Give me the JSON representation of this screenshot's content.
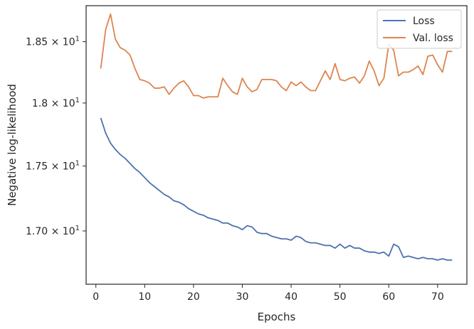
{
  "chart_data": {
    "type": "line",
    "xlabel": "Epochs",
    "ylabel": "Negative log-likelihood",
    "xlim": [
      -2,
      76
    ],
    "ylim": [
      16.6,
      18.8
    ],
    "y_scale": "log",
    "grid": false,
    "legend_position": "top-right",
    "x_ticks": [
      0,
      10,
      20,
      30,
      40,
      50,
      60,
      70
    ],
    "x_tick_labels": [
      "0",
      "10",
      "20",
      "30",
      "40",
      "50",
      "60",
      "70"
    ],
    "y_ticks": [
      {
        "value": 17.0,
        "mantissa": "1.70",
        "exponent": "1"
      },
      {
        "value": 17.5,
        "mantissa": "1.75",
        "exponent": "1"
      },
      {
        "value": 18.0,
        "mantissa": "1.8",
        "exponent": "1"
      },
      {
        "value": 18.5,
        "mantissa": "1.85",
        "exponent": "1"
      }
    ],
    "x": [
      1,
      2,
      3,
      4,
      5,
      6,
      7,
      8,
      9,
      10,
      11,
      12,
      13,
      14,
      15,
      16,
      17,
      18,
      19,
      20,
      21,
      22,
      23,
      24,
      25,
      26,
      27,
      28,
      29,
      30,
      31,
      32,
      33,
      34,
      35,
      36,
      37,
      38,
      39,
      40,
      41,
      42,
      43,
      44,
      45,
      46,
      47,
      48,
      49,
      50,
      51,
      52,
      53,
      54,
      55,
      56,
      57,
      58,
      59,
      60,
      61,
      62,
      63,
      64,
      65,
      66,
      67,
      68,
      69,
      70,
      71,
      72,
      73
    ],
    "series": [
      {
        "name": "Loss",
        "color": "#4c72b0",
        "values": [
          17.88,
          17.76,
          17.68,
          17.63,
          17.59,
          17.56,
          17.52,
          17.48,
          17.45,
          17.41,
          17.37,
          17.34,
          17.31,
          17.28,
          17.26,
          17.23,
          17.22,
          17.2,
          17.17,
          17.15,
          17.13,
          17.12,
          17.1,
          17.09,
          17.08,
          17.06,
          17.06,
          17.04,
          17.03,
          17.01,
          17.04,
          17.03,
          16.99,
          16.98,
          16.98,
          16.96,
          16.95,
          16.94,
          16.94,
          16.93,
          16.96,
          16.95,
          16.92,
          16.91,
          16.91,
          16.9,
          16.89,
          16.89,
          16.87,
          16.9,
          16.87,
          16.89,
          16.87,
          16.87,
          16.85,
          16.84,
          16.84,
          16.83,
          16.84,
          16.81,
          16.9,
          16.88,
          16.8,
          16.81,
          16.8,
          16.79,
          16.8,
          16.79,
          16.79,
          16.78,
          16.79,
          16.78,
          16.78
        ]
      },
      {
        "name": "Val. loss",
        "color": "#dd8452",
        "values": [
          18.28,
          18.6,
          18.73,
          18.52,
          18.45,
          18.43,
          18.39,
          18.28,
          18.19,
          18.18,
          18.16,
          18.12,
          18.12,
          18.13,
          18.07,
          18.12,
          18.16,
          18.18,
          18.13,
          18.06,
          18.06,
          18.04,
          18.05,
          18.05,
          18.05,
          18.2,
          18.14,
          18.09,
          18.07,
          18.2,
          18.13,
          18.09,
          18.11,
          18.19,
          18.19,
          18.19,
          18.18,
          18.13,
          18.1,
          18.17,
          18.14,
          18.17,
          18.13,
          18.1,
          18.1,
          18.18,
          18.26,
          18.19,
          18.32,
          18.19,
          18.18,
          18.2,
          18.21,
          18.16,
          18.22,
          18.34,
          18.26,
          18.14,
          18.2,
          18.48,
          18.43,
          18.22,
          18.25,
          18.25,
          18.27,
          18.3,
          18.23,
          18.38,
          18.39,
          18.31,
          18.25,
          18.42,
          18.42
        ]
      }
    ]
  }
}
